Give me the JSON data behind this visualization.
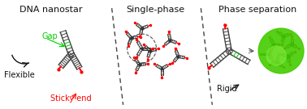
{
  "title_left": "DNA nanostar",
  "title_mid": "Single-phase",
  "title_right": "Phase separation",
  "label_gap": "Gap",
  "label_flexible": "Flexible",
  "label_sticky": "Sticky end",
  "label_rigid": "Rigid",
  "color_gap": "#00cc00",
  "color_sticky": "#ff0000",
  "color_black": "#111111",
  "color_green_circle": "#44cc00",
  "color_white": "#ffffff",
  "bg_color": "#ffffff",
  "fig_width": 3.78,
  "fig_height": 1.35,
  "dpi": 100
}
